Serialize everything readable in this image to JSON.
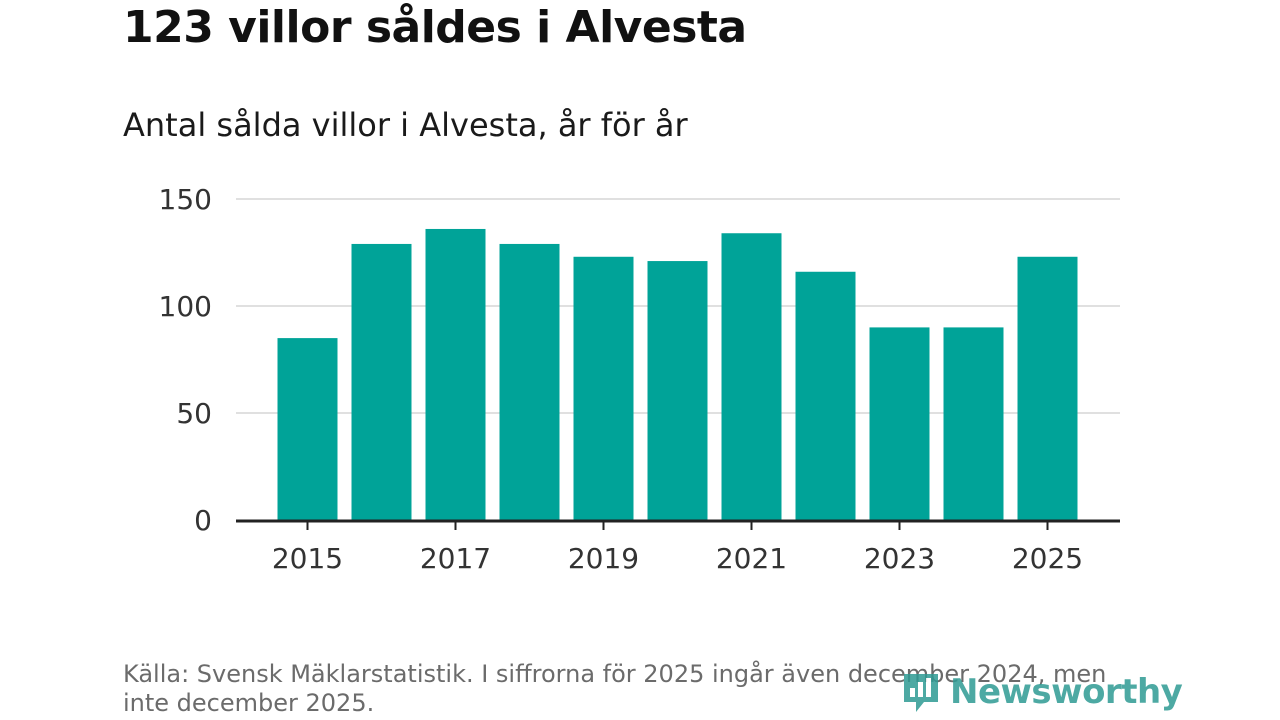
{
  "header": {
    "title": "123 villor såldes i Alvesta",
    "subtitle": "Antal sålda villor i Alvesta, år för år"
  },
  "footer": {
    "source": "Källa: Svensk Mäklarstatistik. I siffrorna för 2025 ingår även december 2024, men inte december 2025.",
    "logo_text": "Newsworthy"
  },
  "colors": {
    "bar": "#00a398",
    "grid": "#e0e0e0",
    "axis": "#222222",
    "logo": "#2f9b93"
  },
  "chart_data": {
    "type": "bar",
    "title": "123 villor såldes i Alvesta",
    "subtitle": "Antal sålda villor i Alvesta, år för år",
    "xlabel": "",
    "ylabel": "",
    "categories": [
      "2015",
      "2016",
      "2017",
      "2018",
      "2019",
      "2020",
      "2021",
      "2022",
      "2023",
      "2024",
      "2025"
    ],
    "values": [
      85,
      129,
      136,
      129,
      123,
      121,
      134,
      116,
      90,
      90,
      123
    ],
    "x_tick_labels": [
      "2015",
      "2017",
      "2019",
      "2021",
      "2023",
      "2025"
    ],
    "y_ticks": [
      0,
      50,
      100,
      150
    ],
    "ylim": [
      0,
      150
    ],
    "grid": true
  }
}
